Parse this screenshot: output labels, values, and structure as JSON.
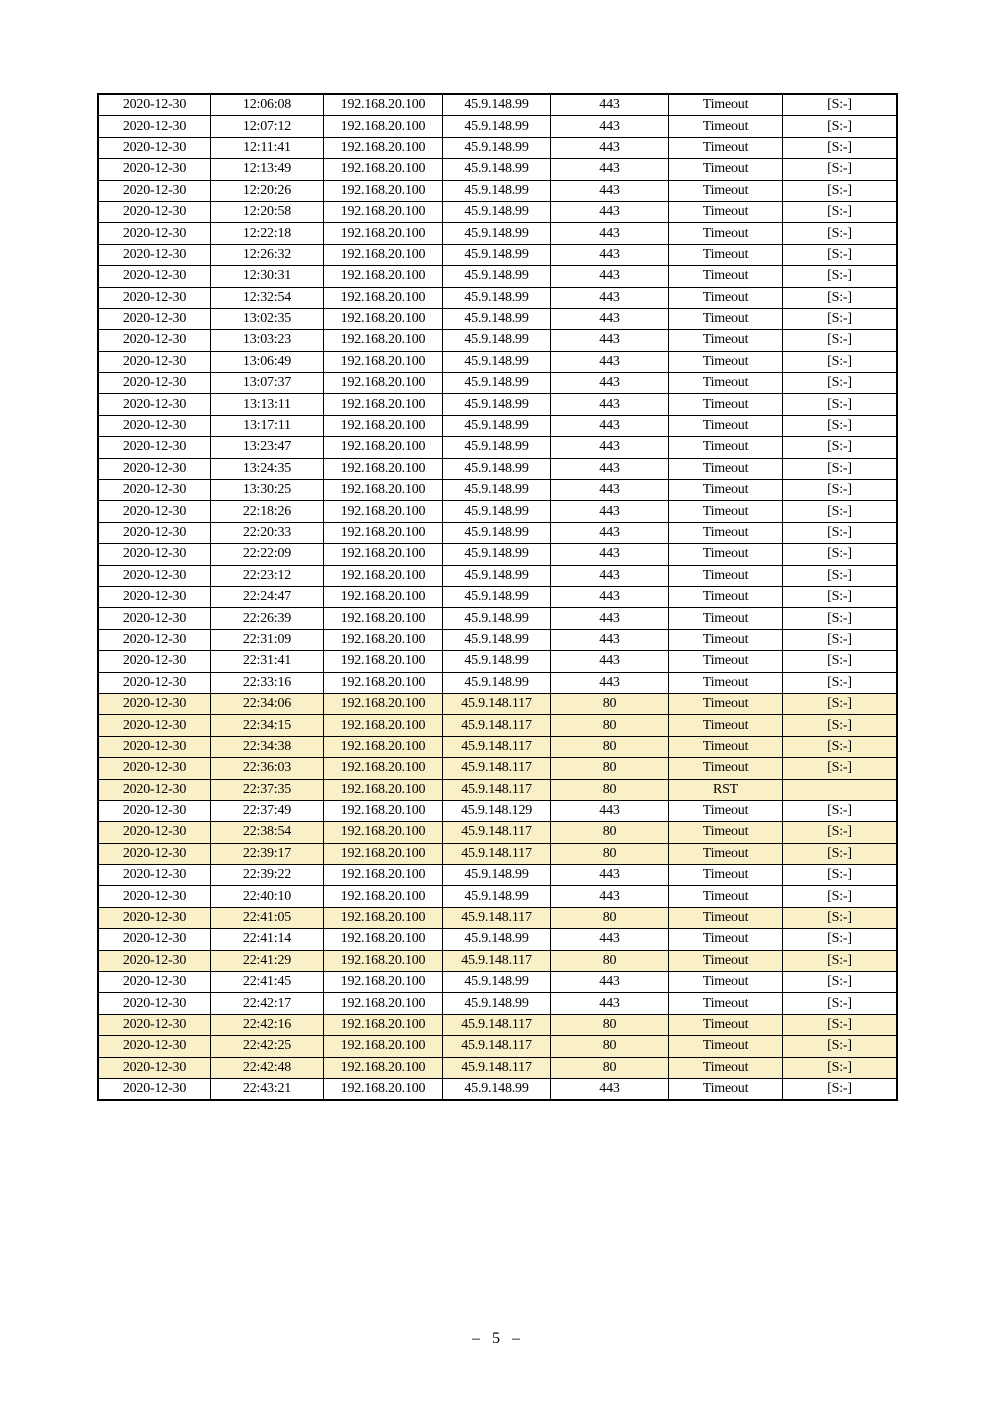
{
  "page": {
    "number_label": "– 5 –"
  },
  "table": {
    "fields": [
      "date",
      "time",
      "source_ip",
      "dest_ip",
      "dest_port",
      "status",
      "flags"
    ],
    "highlight_color": "#FAF0C8",
    "highlighted_row_indices": [
      28,
      29,
      30,
      31,
      32,
      34,
      35,
      38,
      40,
      43,
      44,
      45
    ],
    "rows": [
      [
        "2020-12-30",
        "12:06:08",
        "192.168.20.100",
        "45.9.148.99",
        "443",
        "Timeout",
        "[S:-]"
      ],
      [
        "2020-12-30",
        "12:07:12",
        "192.168.20.100",
        "45.9.148.99",
        "443",
        "Timeout",
        "[S:-]"
      ],
      [
        "2020-12-30",
        "12:11:41",
        "192.168.20.100",
        "45.9.148.99",
        "443",
        "Timeout",
        "[S:-]"
      ],
      [
        "2020-12-30",
        "12:13:49",
        "192.168.20.100",
        "45.9.148.99",
        "443",
        "Timeout",
        "[S:-]"
      ],
      [
        "2020-12-30",
        "12:20:26",
        "192.168.20.100",
        "45.9.148.99",
        "443",
        "Timeout",
        "[S:-]"
      ],
      [
        "2020-12-30",
        "12:20:58",
        "192.168.20.100",
        "45.9.148.99",
        "443",
        "Timeout",
        "[S:-]"
      ],
      [
        "2020-12-30",
        "12:22:18",
        "192.168.20.100",
        "45.9.148.99",
        "443",
        "Timeout",
        "[S:-]"
      ],
      [
        "2020-12-30",
        "12:26:32",
        "192.168.20.100",
        "45.9.148.99",
        "443",
        "Timeout",
        "[S:-]"
      ],
      [
        "2020-12-30",
        "12:30:31",
        "192.168.20.100",
        "45.9.148.99",
        "443",
        "Timeout",
        "[S:-]"
      ],
      [
        "2020-12-30",
        "12:32:54",
        "192.168.20.100",
        "45.9.148.99",
        "443",
        "Timeout",
        "[S:-]"
      ],
      [
        "2020-12-30",
        "13:02:35",
        "192.168.20.100",
        "45.9.148.99",
        "443",
        "Timeout",
        "[S:-]"
      ],
      [
        "2020-12-30",
        "13:03:23",
        "192.168.20.100",
        "45.9.148.99",
        "443",
        "Timeout",
        "[S:-]"
      ],
      [
        "2020-12-30",
        "13:06:49",
        "192.168.20.100",
        "45.9.148.99",
        "443",
        "Timeout",
        "[S:-]"
      ],
      [
        "2020-12-30",
        "13:07:37",
        "192.168.20.100",
        "45.9.148.99",
        "443",
        "Timeout",
        "[S:-]"
      ],
      [
        "2020-12-30",
        "13:13:11",
        "192.168.20.100",
        "45.9.148.99",
        "443",
        "Timeout",
        "[S:-]"
      ],
      [
        "2020-12-30",
        "13:17:11",
        "192.168.20.100",
        "45.9.148.99",
        "443",
        "Timeout",
        "[S:-]"
      ],
      [
        "2020-12-30",
        "13:23:47",
        "192.168.20.100",
        "45.9.148.99",
        "443",
        "Timeout",
        "[S:-]"
      ],
      [
        "2020-12-30",
        "13:24:35",
        "192.168.20.100",
        "45.9.148.99",
        "443",
        "Timeout",
        "[S:-]"
      ],
      [
        "2020-12-30",
        "13:30:25",
        "192.168.20.100",
        "45.9.148.99",
        "443",
        "Timeout",
        "[S:-]"
      ],
      [
        "2020-12-30",
        "22:18:26",
        "192.168.20.100",
        "45.9.148.99",
        "443",
        "Timeout",
        "[S:-]"
      ],
      [
        "2020-12-30",
        "22:20:33",
        "192.168.20.100",
        "45.9.148.99",
        "443",
        "Timeout",
        "[S:-]"
      ],
      [
        "2020-12-30",
        "22:22:09",
        "192.168.20.100",
        "45.9.148.99",
        "443",
        "Timeout",
        "[S:-]"
      ],
      [
        "2020-12-30",
        "22:23:12",
        "192.168.20.100",
        "45.9.148.99",
        "443",
        "Timeout",
        "[S:-]"
      ],
      [
        "2020-12-30",
        "22:24:47",
        "192.168.20.100",
        "45.9.148.99",
        "443",
        "Timeout",
        "[S:-]"
      ],
      [
        "2020-12-30",
        "22:26:39",
        "192.168.20.100",
        "45.9.148.99",
        "443",
        "Timeout",
        "[S:-]"
      ],
      [
        "2020-12-30",
        "22:31:09",
        "192.168.20.100",
        "45.9.148.99",
        "443",
        "Timeout",
        "[S:-]"
      ],
      [
        "2020-12-30",
        "22:31:41",
        "192.168.20.100",
        "45.9.148.99",
        "443",
        "Timeout",
        "[S:-]"
      ],
      [
        "2020-12-30",
        "22:33:16",
        "192.168.20.100",
        "45.9.148.99",
        "443",
        "Timeout",
        "[S:-]"
      ],
      [
        "2020-12-30",
        "22:34:06",
        "192.168.20.100",
        "45.9.148.117",
        "80",
        "Timeout",
        "[S:-]"
      ],
      [
        "2020-12-30",
        "22:34:15",
        "192.168.20.100",
        "45.9.148.117",
        "80",
        "Timeout",
        "[S:-]"
      ],
      [
        "2020-12-30",
        "22:34:38",
        "192.168.20.100",
        "45.9.148.117",
        "80",
        "Timeout",
        "[S:-]"
      ],
      [
        "2020-12-30",
        "22:36:03",
        "192.168.20.100",
        "45.9.148.117",
        "80",
        "Timeout",
        "[S:-]"
      ],
      [
        "2020-12-30",
        "22:37:35",
        "192.168.20.100",
        "45.9.148.117",
        "80",
        "RST",
        ""
      ],
      [
        "2020-12-30",
        "22:37:49",
        "192.168.20.100",
        "45.9.148.129",
        "443",
        "Timeout",
        "[S:-]"
      ],
      [
        "2020-12-30",
        "22:38:54",
        "192.168.20.100",
        "45.9.148.117",
        "80",
        "Timeout",
        "[S:-]"
      ],
      [
        "2020-12-30",
        "22:39:17",
        "192.168.20.100",
        "45.9.148.117",
        "80",
        "Timeout",
        "[S:-]"
      ],
      [
        "2020-12-30",
        "22:39:22",
        "192.168.20.100",
        "45.9.148.99",
        "443",
        "Timeout",
        "[S:-]"
      ],
      [
        "2020-12-30",
        "22:40:10",
        "192.168.20.100",
        "45.9.148.99",
        "443",
        "Timeout",
        "[S:-]"
      ],
      [
        "2020-12-30",
        "22:41:05",
        "192.168.20.100",
        "45.9.148.117",
        "80",
        "Timeout",
        "[S:-]"
      ],
      [
        "2020-12-30",
        "22:41:14",
        "192.168.20.100",
        "45.9.148.99",
        "443",
        "Timeout",
        "[S:-]"
      ],
      [
        "2020-12-30",
        "22:41:29",
        "192.168.20.100",
        "45.9.148.117",
        "80",
        "Timeout",
        "[S:-]"
      ],
      [
        "2020-12-30",
        "22:41:45",
        "192.168.20.100",
        "45.9.148.99",
        "443",
        "Timeout",
        "[S:-]"
      ],
      [
        "2020-12-30",
        "22:42:17",
        "192.168.20.100",
        "45.9.148.99",
        "443",
        "Timeout",
        "[S:-]"
      ],
      [
        "2020-12-30",
        "22:42:16",
        "192.168.20.100",
        "45.9.148.117",
        "80",
        "Timeout",
        "[S:-]"
      ],
      [
        "2020-12-30",
        "22:42:25",
        "192.168.20.100",
        "45.9.148.117",
        "80",
        "Timeout",
        "[S:-]"
      ],
      [
        "2020-12-30",
        "22:42:48",
        "192.168.20.100",
        "45.9.148.117",
        "80",
        "Timeout",
        "[S:-]"
      ],
      [
        "2020-12-30",
        "22:43:21",
        "192.168.20.100",
        "45.9.148.99",
        "443",
        "Timeout",
        "[S:-]"
      ]
    ]
  }
}
